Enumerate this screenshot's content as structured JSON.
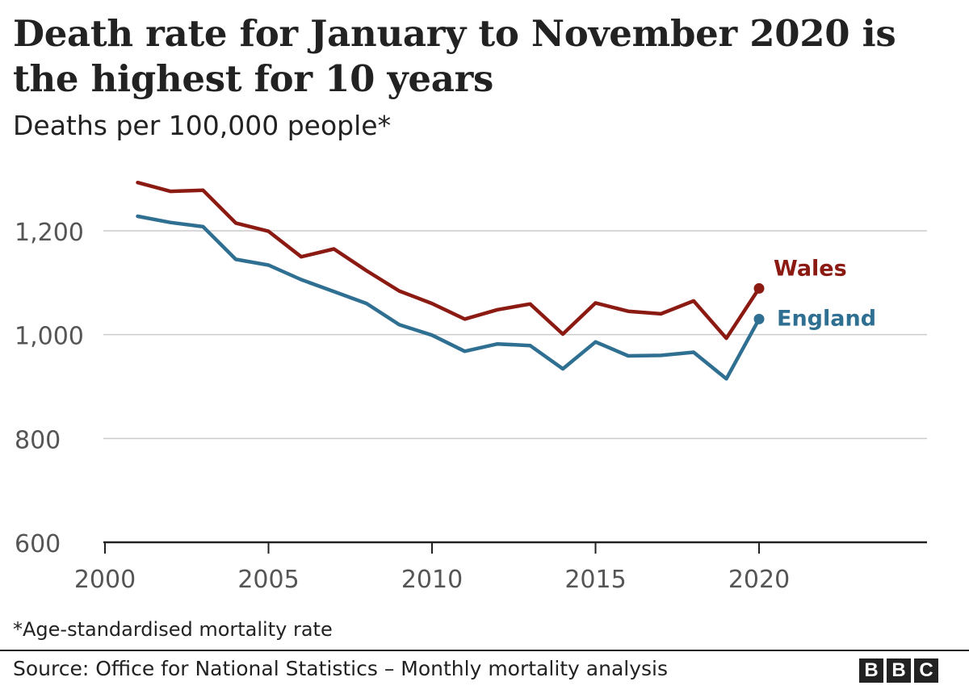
{
  "chart_data": {
    "type": "line",
    "title": "Death rate for January to November 2020 is the highest for 10 years",
    "subtitle": "Deaths per 100,000 people*",
    "xlabel": "",
    "ylabel": "Deaths per 100,000 people*",
    "xlim": [
      2000,
      2025
    ],
    "ylim": [
      600,
      1300
    ],
    "xticks": [
      2000,
      2005,
      2010,
      2015,
      2020
    ],
    "yticks": [
      600,
      800,
      1000,
      1200
    ],
    "ytick_labels": [
      "600",
      "800",
      "1,000",
      "1,200"
    ],
    "grid": true,
    "x": [
      2001,
      2002,
      2003,
      2004,
      2005,
      2006,
      2007,
      2008,
      2009,
      2010,
      2011,
      2012,
      2013,
      2014,
      2015,
      2016,
      2017,
      2018,
      2019,
      2020
    ],
    "series": [
      {
        "name": "Wales",
        "color": "#8b1a13",
        "values": [
          1293,
          1276,
          1278,
          1215,
          1199,
          1150,
          1165,
          1123,
          1084,
          1060,
          1030,
          1048,
          1059,
          1001,
          1061,
          1045,
          1040,
          1065,
          993,
          1089
        ]
      },
      {
        "name": "England",
        "color": "#2f6f91",
        "values": [
          1228,
          1216,
          1208,
          1145,
          1134,
          1106,
          1083,
          1060,
          1019,
          999,
          968,
          982,
          979,
          934,
          986,
          959,
          960,
          966,
          915,
          1030
        ]
      }
    ],
    "footnote": "*Age-standardised mortality rate",
    "source": "Source: Office for National Statistics – Monthly mortality analysis"
  },
  "branding": {
    "logo_letters": [
      "B",
      "B",
      "C"
    ]
  }
}
